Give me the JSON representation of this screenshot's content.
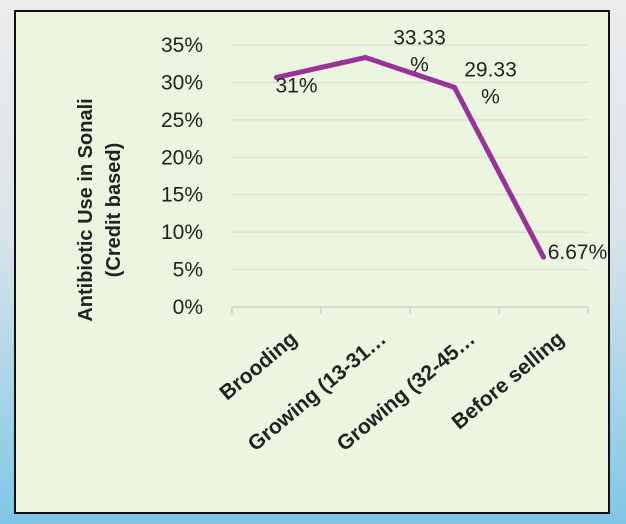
{
  "chart_data": {
    "type": "line",
    "ylabel_lines": [
      "Antibiotic Use in Sonali",
      "(Credit based)"
    ],
    "categories": [
      "Brooding",
      "Growing (13-31…",
      "Growing (32-45…",
      "Before selling"
    ],
    "values": [
      30.67,
      33.33,
      29.33,
      6.67
    ],
    "data_labels": [
      [
        "31%"
      ],
      [
        "33.33",
        "%"
      ],
      [
        "29.33",
        "%"
      ],
      [
        "6.67%"
      ]
    ],
    "ylim": [
      0,
      35
    ],
    "yticks": [
      "0%",
      "5%",
      "10%",
      "15%",
      "20%",
      "25%",
      "30%",
      "35%"
    ],
    "line_color": "#993399",
    "gridlines": true,
    "legend": "none"
  }
}
